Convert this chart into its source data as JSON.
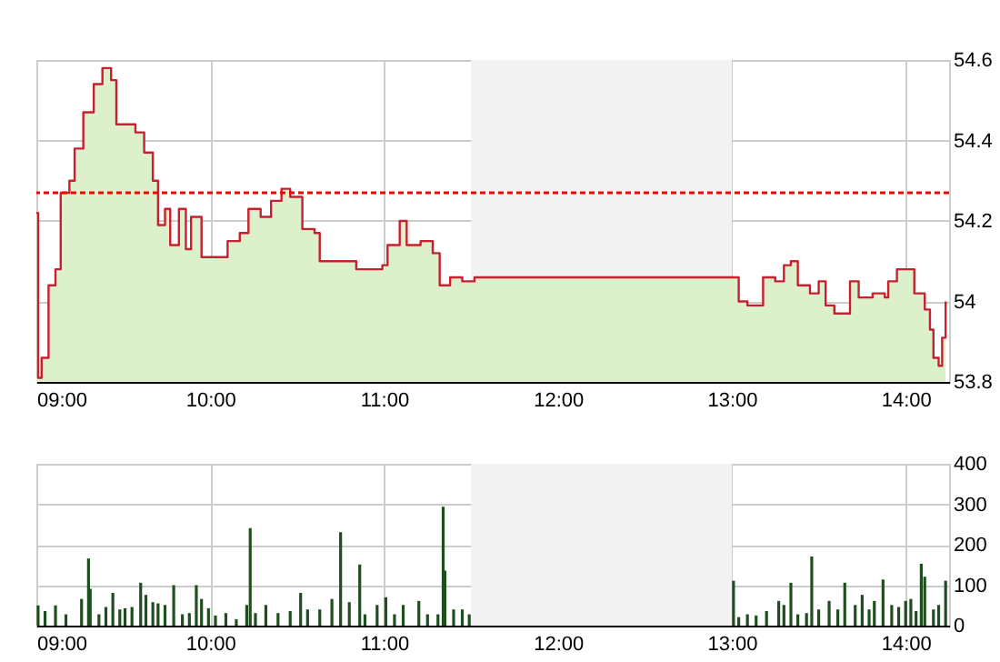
{
  "chart_data": [
    {
      "type": "step",
      "xlim": [
        9,
        14.25
      ],
      "ylim": [
        53.8,
        54.6
      ],
      "yticks": [
        53.8,
        54,
        54.2,
        54.4,
        54.6
      ],
      "xticks": [
        {
          "value": 9,
          "label": "09:00"
        },
        {
          "value": 10,
          "label": "10:00"
        },
        {
          "value": 11,
          "label": "11:00"
        },
        {
          "value": 12,
          "label": "12:00"
        },
        {
          "value": 13,
          "label": "13:00"
        },
        {
          "value": 14,
          "label": "14:00"
        }
      ],
      "grid": true,
      "ref_lines": [
        {
          "axis": "y",
          "value": 54.27,
          "color": "#ff0000",
          "line_style": "dotted"
        }
      ],
      "bands": [
        {
          "axis": "x",
          "from": 11.5,
          "to": 13,
          "color": "#f2f2f2"
        }
      ],
      "series": [
        {
          "type": "area",
          "color": "#dcf0cc",
          "x": [
            9.0,
            9.01,
            9.03,
            9.07,
            9.11,
            9.14,
            9.19,
            9.22,
            9.27,
            9.33,
            9.38,
            9.43,
            9.46,
            9.57,
            9.62,
            9.67,
            9.7,
            9.74,
            9.77,
            9.82,
            9.86,
            9.89,
            9.95,
            10.06,
            10.1,
            10.17,
            10.22,
            10.29,
            10.35,
            10.41,
            10.46,
            10.53,
            10.6,
            10.63,
            10.7,
            10.84,
            10.9,
            10.99,
            11.02,
            11.09,
            11.13,
            11.21,
            11.28,
            11.32,
            11.38,
            11.45,
            11.52,
            13.0,
            13.04,
            13.09,
            13.18,
            13.25,
            13.3,
            13.34,
            13.38,
            13.45,
            13.5,
            13.54,
            13.59,
            13.65,
            13.68,
            13.73,
            13.81,
            13.88,
            13.9,
            13.95,
            14.0,
            14.05,
            14.11,
            14.14,
            14.16,
            14.19,
            14.21,
            14.23
          ],
          "values": [
            54.22,
            53.81,
            53.86,
            54.04,
            54.08,
            54.27,
            54.3,
            54.38,
            54.47,
            54.54,
            54.58,
            54.55,
            54.44,
            54.42,
            54.37,
            54.3,
            54.19,
            54.23,
            54.14,
            54.23,
            54.13,
            54.21,
            54.11,
            54.11,
            54.15,
            54.17,
            54.23,
            54.21,
            54.25,
            54.28,
            54.26,
            54.18,
            54.17,
            54.1,
            54.1,
            54.08,
            54.08,
            54.09,
            54.14,
            54.2,
            54.14,
            54.15,
            54.12,
            54.04,
            54.06,
            54.05,
            54.06,
            54.06,
            54.0,
            53.99,
            54.06,
            54.05,
            54.09,
            54.1,
            54.04,
            54.02,
            54.05,
            53.99,
            53.97,
            53.97,
            54.05,
            54.01,
            54.02,
            54.01,
            54.05,
            54.08,
            54.08,
            54.02,
            53.98,
            53.93,
            53.86,
            53.84,
            53.91,
            54.0
          ]
        },
        {
          "type": "step",
          "color": "#c8202e",
          "x": [
            9.0,
            9.01,
            9.03,
            9.07,
            9.11,
            9.14,
            9.19,
            9.22,
            9.27,
            9.33,
            9.38,
            9.43,
            9.46,
            9.57,
            9.62,
            9.67,
            9.7,
            9.74,
            9.77,
            9.82,
            9.86,
            9.89,
            9.95,
            10.06,
            10.1,
            10.17,
            10.22,
            10.29,
            10.35,
            10.41,
            10.46,
            10.53,
            10.6,
            10.63,
            10.7,
            10.84,
            10.9,
            10.99,
            11.02,
            11.09,
            11.13,
            11.21,
            11.28,
            11.32,
            11.38,
            11.45,
            11.52,
            13.0,
            13.04,
            13.09,
            13.18,
            13.25,
            13.3,
            13.34,
            13.38,
            13.45,
            13.5,
            13.54,
            13.59,
            13.65,
            13.68,
            13.73,
            13.81,
            13.88,
            13.9,
            13.95,
            14.0,
            14.05,
            14.11,
            14.14,
            14.16,
            14.19,
            14.21,
            14.23
          ],
          "values": [
            54.22,
            53.81,
            53.86,
            54.04,
            54.08,
            54.27,
            54.3,
            54.38,
            54.47,
            54.54,
            54.58,
            54.55,
            54.44,
            54.42,
            54.37,
            54.3,
            54.19,
            54.23,
            54.14,
            54.23,
            54.13,
            54.21,
            54.11,
            54.11,
            54.15,
            54.17,
            54.23,
            54.21,
            54.25,
            54.28,
            54.26,
            54.18,
            54.17,
            54.1,
            54.1,
            54.08,
            54.08,
            54.09,
            54.14,
            54.2,
            54.14,
            54.15,
            54.12,
            54.04,
            54.06,
            54.05,
            54.06,
            54.06,
            54.0,
            53.99,
            54.06,
            54.05,
            54.09,
            54.1,
            54.04,
            54.02,
            54.05,
            53.99,
            53.97,
            53.97,
            54.05,
            54.01,
            54.02,
            54.01,
            54.05,
            54.08,
            54.08,
            54.02,
            53.98,
            53.93,
            53.86,
            53.84,
            53.91,
            54.0
          ]
        }
      ]
    },
    {
      "type": "bar",
      "xlim": [
        9,
        14.25
      ],
      "ylim": [
        0,
        400
      ],
      "yticks": [
        0,
        100,
        200,
        300,
        400
      ],
      "xticks": [
        {
          "value": 9,
          "label": "09:00"
        },
        {
          "value": 10,
          "label": "10:00"
        },
        {
          "value": 11,
          "label": "11:00"
        },
        {
          "value": 12,
          "label": "12:00"
        },
        {
          "value": 13,
          "label": "13:00"
        },
        {
          "value": 14,
          "label": "14:00"
        }
      ],
      "grid": true,
      "bands": [
        {
          "axis": "x",
          "from": 11.5,
          "to": 13,
          "color": "#f2f2f2"
        }
      ],
      "series": [
        {
          "color": "#1f4f1f",
          "x": [
            9.01,
            9.05,
            9.11,
            9.17,
            9.26,
            9.3,
            9.31,
            9.36,
            9.4,
            9.44,
            9.48,
            9.51,
            9.55,
            9.6,
            9.63,
            9.67,
            9.7,
            9.74,
            9.79,
            9.84,
            9.88,
            9.92,
            9.95,
            9.99,
            10.03,
            10.09,
            10.15,
            10.21,
            10.23,
            10.26,
            10.32,
            10.39,
            10.46,
            10.52,
            10.56,
            10.63,
            10.7,
            10.75,
            10.8,
            10.86,
            10.89,
            10.96,
            11.01,
            11.06,
            11.11,
            11.2,
            11.25,
            11.31,
            11.34,
            11.35,
            11.4,
            11.45,
            11.49,
            13.01,
            13.04,
            13.09,
            13.14,
            13.2,
            13.27,
            13.3,
            13.34,
            13.38,
            13.43,
            13.46,
            13.5,
            13.56,
            13.61,
            13.65,
            13.71,
            13.75,
            13.79,
            13.82,
            13.87,
            13.92,
            13.96,
            14.0,
            14.03,
            14.06,
            14.09,
            14.11,
            14.16,
            14.19,
            14.23
          ],
          "values": [
            50,
            36,
            50,
            28,
            66,
            166,
            91,
            28,
            46,
            81,
            40,
            43,
            46,
            106,
            76,
            58,
            55,
            51,
            100,
            28,
            31,
            100,
            66,
            43,
            25,
            31,
            16,
            51,
            241,
            31,
            51,
            31,
            36,
            81,
            40,
            40,
            66,
            231,
            58,
            151,
            28,
            51,
            70,
            28,
            51,
            61,
            28,
            28,
            294,
            136,
            40,
            40,
            28,
            111,
            21,
            28,
            25,
            36,
            61,
            51,
            106,
            28,
            31,
            171,
            40,
            61,
            40,
            106,
            51,
            76,
            40,
            61,
            114,
            51,
            46,
            61,
            66,
            36,
            153,
            121,
            40,
            51,
            111
          ]
        }
      ]
    }
  ]
}
